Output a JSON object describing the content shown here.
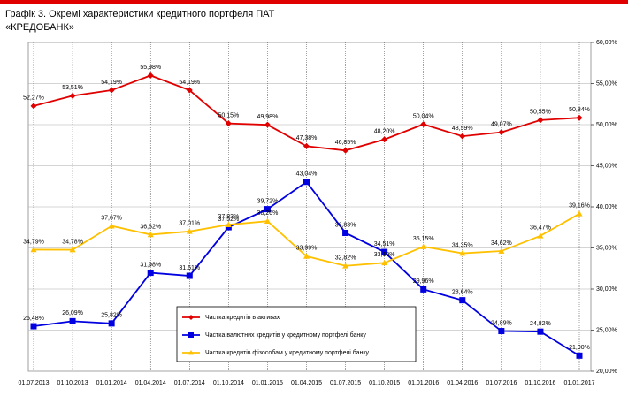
{
  "chart_data": {
    "type": "line",
    "title": "Графік 3. Окремі характеристики кредитного портфеля ПАТ «КРЕДОБАНК»",
    "categories": [
      "01.07.2013",
      "01.10.2013",
      "01.01.2014",
      "01.04.2014",
      "01.07.2014",
      "01.10.2014",
      "01.01.2015",
      "01.04.2015",
      "01.07.2015",
      "01.10.2015",
      "01.01.2016",
      "01.04.2016",
      "01.07.2016",
      "01.10.2016",
      "01.01.2017"
    ],
    "series": [
      {
        "name": "Частка кредитів в активах",
        "color": "#e00000",
        "marker": "diamond",
        "values": [
          52.27,
          53.51,
          54.19,
          55.98,
          54.19,
          50.15,
          49.98,
          47.38,
          46.85,
          48.2,
          50.04,
          48.59,
          49.07,
          50.55,
          50.84
        ],
        "value_labels": [
          "52,27%",
          "53,51%",
          "54,19%",
          "55,98%",
          "54,19%",
          "50,15%",
          "49,98%",
          "47,38%",
          "46,85%",
          "48,20%",
          "50,04%",
          "48,59%",
          "49,07%",
          "50,55%",
          "50,84%"
        ]
      },
      {
        "name": "Частка валютних кредитів у кредитному портфелі банку",
        "color": "#0000e0",
        "marker": "square",
        "values": [
          25.48,
          26.09,
          25.82,
          31.98,
          31.61,
          37.52,
          39.72,
          43.04,
          36.83,
          34.51,
          29.96,
          28.64,
          24.89,
          24.82,
          21.9
        ],
        "value_labels": [
          "25,48%",
          "26,09%",
          "25,82%",
          "31,98%",
          "31,61%",
          "37,52%",
          "39,72%",
          "43,04%",
          "36,83%",
          "34,51%",
          "29,96%",
          "28,64%",
          "24,89%",
          "24,82%",
          "21,90%"
        ]
      },
      {
        "name": "Частка кредитів фізособам у кредитному портфелі банку",
        "color": "#ffc000",
        "marker": "triangle",
        "values": [
          34.79,
          34.78,
          37.67,
          36.62,
          37.01,
          37.83,
          38.26,
          33.99,
          32.82,
          33.19,
          35.15,
          34.35,
          34.62,
          36.47,
          39.16
        ],
        "value_labels": [
          "34,79%",
          "34,78%",
          "37,67%",
          "36,62%",
          "37,01%",
          "37,83%",
          "38,26%",
          "33,99%",
          "32,82%",
          "33,19%",
          "35,15%",
          "34,35%",
          "34,62%",
          "36,47%",
          "39,16%"
        ]
      }
    ],
    "ylim": [
      20,
      60
    ],
    "yticks": [
      {
        "value": 20,
        "label": "20,00%"
      },
      {
        "value": 25,
        "label": "25,00%"
      },
      {
        "value": 30,
        "label": "30,00%"
      },
      {
        "value": 35,
        "label": "35,00%"
      },
      {
        "value": 40,
        "label": "40,00%"
      },
      {
        "value": 45,
        "label": "45,00%"
      },
      {
        "value": 50,
        "label": "50,00%"
      },
      {
        "value": 55,
        "label": "55,00%"
      },
      {
        "value": 60,
        "label": "60,00%"
      }
    ],
    "y_axis_side": "right",
    "grid": true,
    "legend": "bottom"
  }
}
